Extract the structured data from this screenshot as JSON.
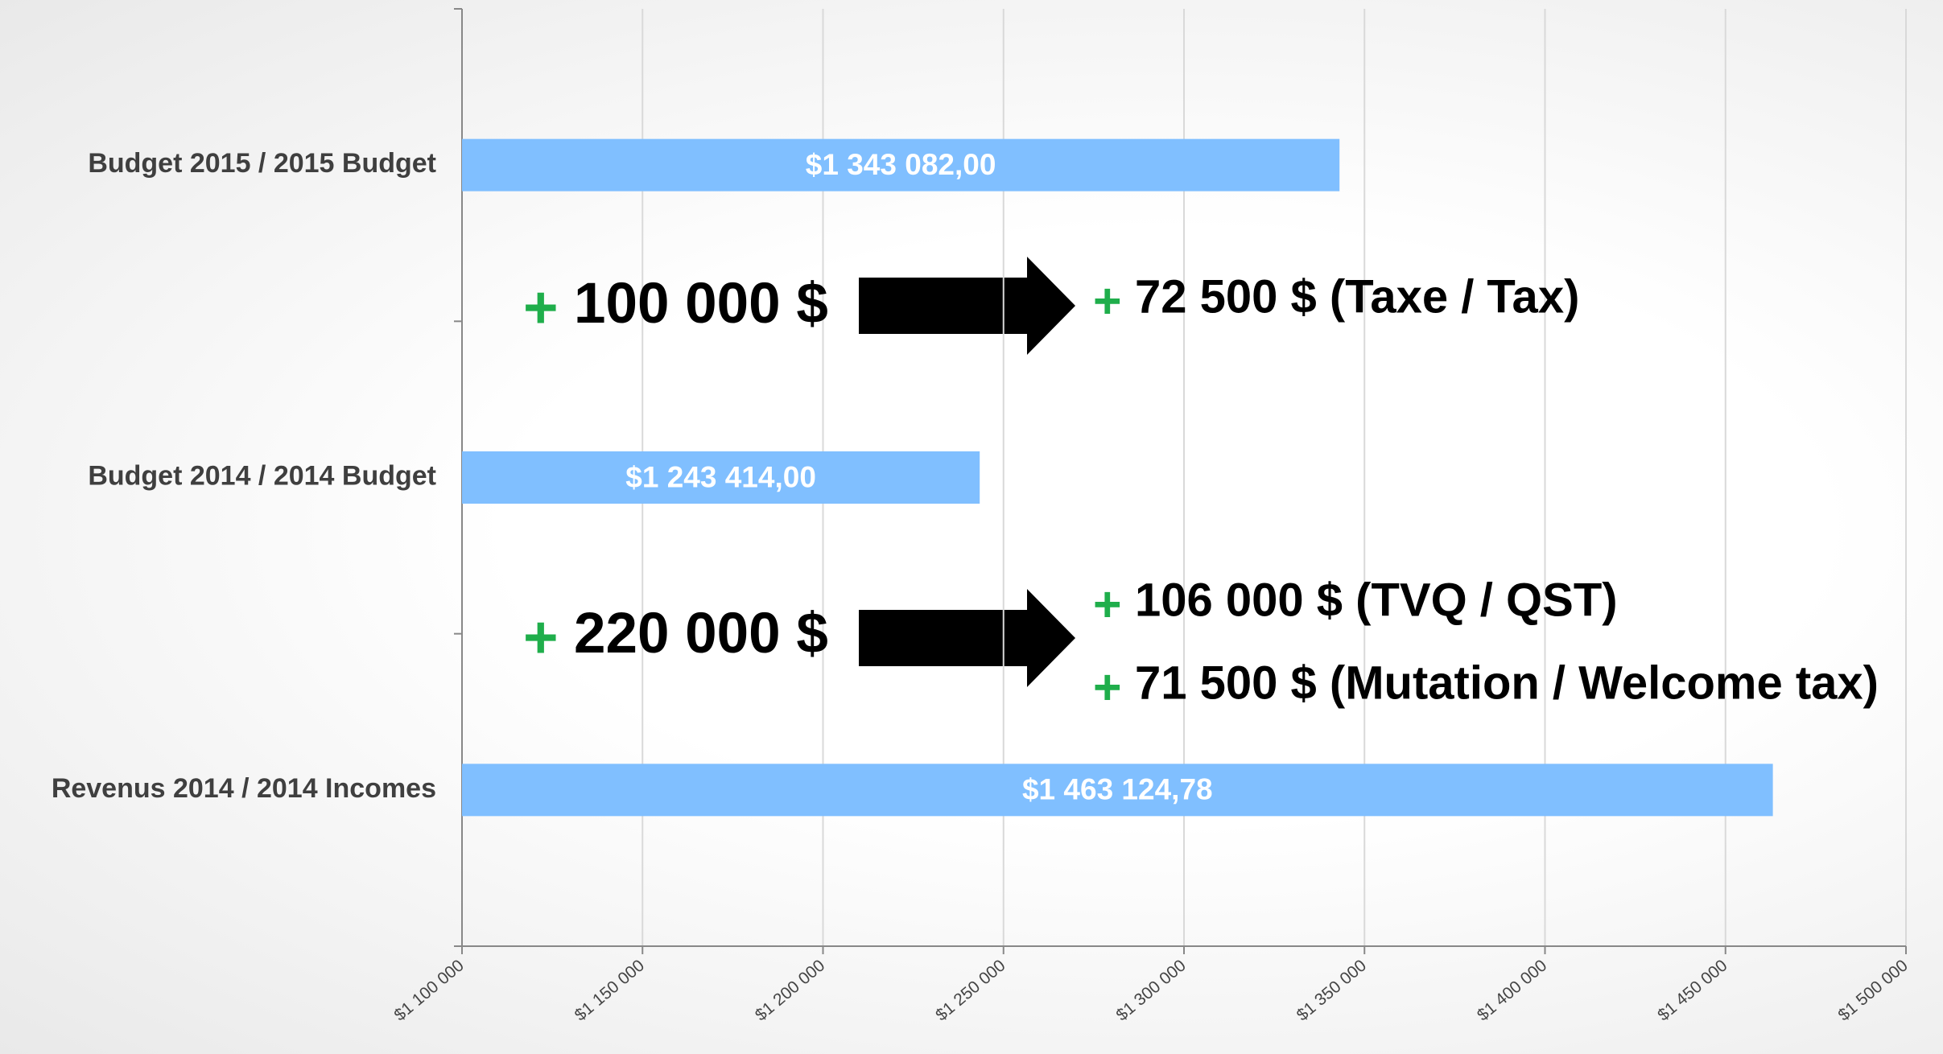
{
  "chart_data": {
    "type": "bar",
    "orientation": "horizontal",
    "categories": [
      "Budget 2015 / 2015 Budget",
      "Budget 2014 / 2014 Budget",
      "Revenus 2014 / 2014 Incomes"
    ],
    "values": [
      1343082,
      1243414,
      1463124.78
    ],
    "value_labels": [
      "$1 343 082,00",
      "$1 243 414,00",
      "$1 463 124,78"
    ],
    "color": "#80bfff",
    "xlim": [
      1100000,
      1500000
    ],
    "xticks": [
      {
        "value": 1100000,
        "label": "$1 100 000"
      },
      {
        "value": 1150000,
        "label": "$1 150 000"
      },
      {
        "value": 1200000,
        "label": "$1 200 000"
      },
      {
        "value": 1250000,
        "label": "$1 250 000"
      },
      {
        "value": 1300000,
        "label": "$1 300 000"
      },
      {
        "value": 1350000,
        "label": "$1 350 000"
      },
      {
        "value": 1400000,
        "label": "$1 400 000"
      },
      {
        "value": 1450000,
        "label": "$1 450 000"
      },
      {
        "value": 1500000,
        "label": "$1 500 000"
      }
    ],
    "grid": true,
    "annotations": [
      {
        "sign": "+",
        "text": "100 000 $"
      },
      {
        "sign": "+",
        "text": "72 500 $ (Taxe / Tax)"
      },
      {
        "sign": "+",
        "text": "220 000 $"
      },
      {
        "sign": "+",
        "text": "106 000 $ (TVQ / QST)"
      },
      {
        "sign": "+",
        "text": "71 500 $ (Mutation / Welcome tax)"
      }
    ]
  }
}
